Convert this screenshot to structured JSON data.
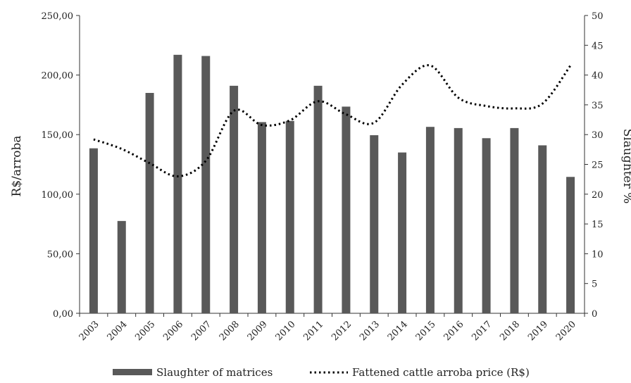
{
  "chart_data": {
    "type": "bar",
    "title": "",
    "categories": [
      "2003",
      "2004",
      "2005",
      "2006",
      "2007",
      "2008",
      "2009",
      "2010",
      "2011",
      "2012",
      "2013",
      "2014",
      "2015",
      "2016",
      "2017",
      "2018",
      "2019",
      "2020"
    ],
    "series": [
      {
        "name": "Slaughter of matrices",
        "type": "bar",
        "axis": "right",
        "color": "#595959",
        "values": [
          27.7,
          15.5,
          37.0,
          43.4,
          43.2,
          38.2,
          32.1,
          32.3,
          38.2,
          34.7,
          29.9,
          27.0,
          31.3,
          31.1,
          29.4,
          31.1,
          28.2,
          22.9
        ]
      },
      {
        "name": "Fattened cattle arroba price (R$)",
        "type": "line",
        "axis": "left",
        "style": "dotted",
        "color": "#000000",
        "values": [
          146,
          138,
          126,
          115,
          128,
          170,
          158,
          162,
          178,
          167,
          160,
          192,
          208,
          181,
          174,
          172,
          176,
          208
        ]
      }
    ],
    "ylabel": "R$/arroba",
    "ylabel_right": "Slaughter %",
    "ylim": [
      0,
      250
    ],
    "ylim_right": [
      0,
      50
    ],
    "yticks": [
      "0,00",
      "50,00",
      "100,00",
      "150,00",
      "200,00",
      "250,00"
    ],
    "yticks_right": [
      "0",
      "5",
      "10",
      "15",
      "20",
      "25",
      "30",
      "35",
      "40",
      "45",
      "50"
    ],
    "grid": false,
    "legend": "bottom"
  }
}
